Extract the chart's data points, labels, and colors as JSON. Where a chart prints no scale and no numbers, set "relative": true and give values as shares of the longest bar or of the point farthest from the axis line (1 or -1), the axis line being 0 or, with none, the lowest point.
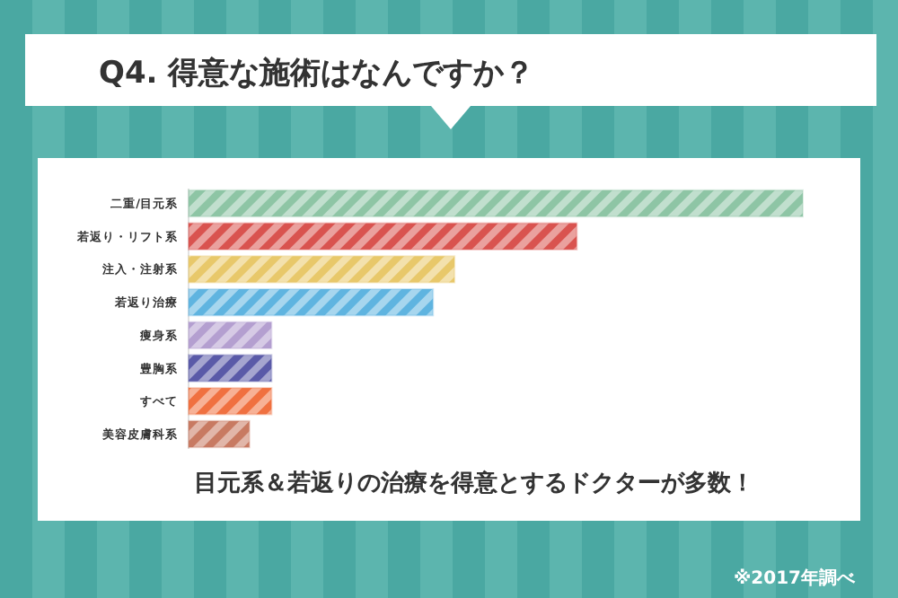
{
  "chart_data": {
    "type": "bar",
    "orientation": "horizontal",
    "relative": true,
    "title": "Q4. 得意な施術はなんですか？",
    "categories": [
      "二重/目元系",
      "若返り・リフト系",
      "注入・注射系",
      "若返り治療",
      "痩身系",
      "豊胸系",
      "すべて",
      "美容皮膚科系"
    ],
    "values": [
      1,
      0.632,
      0.433,
      0.398,
      0.135,
      0.135,
      0.135,
      0.099
    ],
    "colors": [
      "#8ec5a5",
      "#d9534f",
      "#e8c86a",
      "#5fb4e0",
      "#b49fd0",
      "#5a5aa8",
      "#f07040",
      "#c87a62"
    ],
    "annotations": [
      "目元系＆若返りの治療を得意とするドクターが多数！",
      "※2017年調べ"
    ]
  }
}
